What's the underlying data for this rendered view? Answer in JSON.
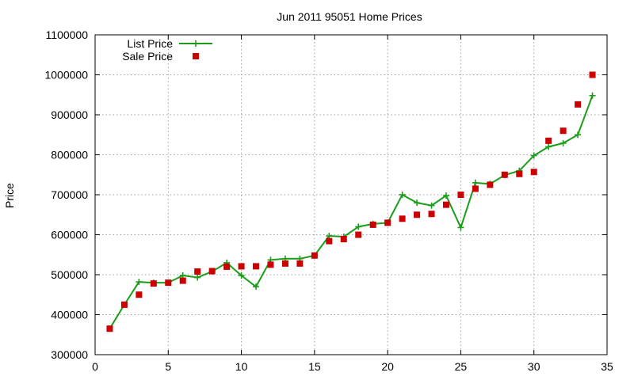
{
  "chart_data": {
    "type": "line",
    "title": "Jun 2011 95051 Home Prices",
    "xlabel": "",
    "ylabel": "Price",
    "xlim": [
      0,
      35
    ],
    "ylim": [
      300000,
      1100000
    ],
    "x_ticks": [
      0,
      5,
      10,
      15,
      20,
      25,
      30,
      35
    ],
    "y_ticks": [
      300000,
      400000,
      500000,
      600000,
      700000,
      800000,
      900000,
      1000000,
      1100000
    ],
    "grid": true,
    "legend_position": "top-left",
    "x": [
      1,
      2,
      3,
      4,
      5,
      6,
      7,
      8,
      9,
      10,
      11,
      12,
      13,
      14,
      15,
      16,
      17,
      18,
      19,
      20,
      21,
      22,
      23,
      24,
      25,
      26,
      27,
      28,
      29,
      30,
      31,
      32,
      33,
      34
    ],
    "series": [
      {
        "name": "List Price",
        "style": "line-points",
        "color": "#1a9e1a",
        "marker": "plus",
        "values": [
          365000,
          425000,
          482000,
          480000,
          480000,
          498000,
          493000,
          508000,
          530000,
          498000,
          470000,
          537000,
          540000,
          540000,
          548000,
          597000,
          595000,
          620000,
          627000,
          630000,
          700000,
          680000,
          673000,
          698000,
          618000,
          730000,
          727000,
          749000,
          760000,
          798000,
          820000,
          829000,
          850000,
          948000
        ]
      },
      {
        "name": "Sale Price",
        "style": "points",
        "color": "#cc0000",
        "marker": "square",
        "values": [
          365000,
          425000,
          450000,
          478000,
          480000,
          485000,
          508000,
          509000,
          520000,
          521000,
          521000,
          525000,
          528000,
          528000,
          548000,
          584000,
          589000,
          600000,
          625000,
          630000,
          640000,
          650000,
          652000,
          675000,
          700000,
          715000,
          725000,
          750000,
          752000,
          757000,
          835000,
          860000,
          926000,
          1000000
        ]
      }
    ]
  }
}
